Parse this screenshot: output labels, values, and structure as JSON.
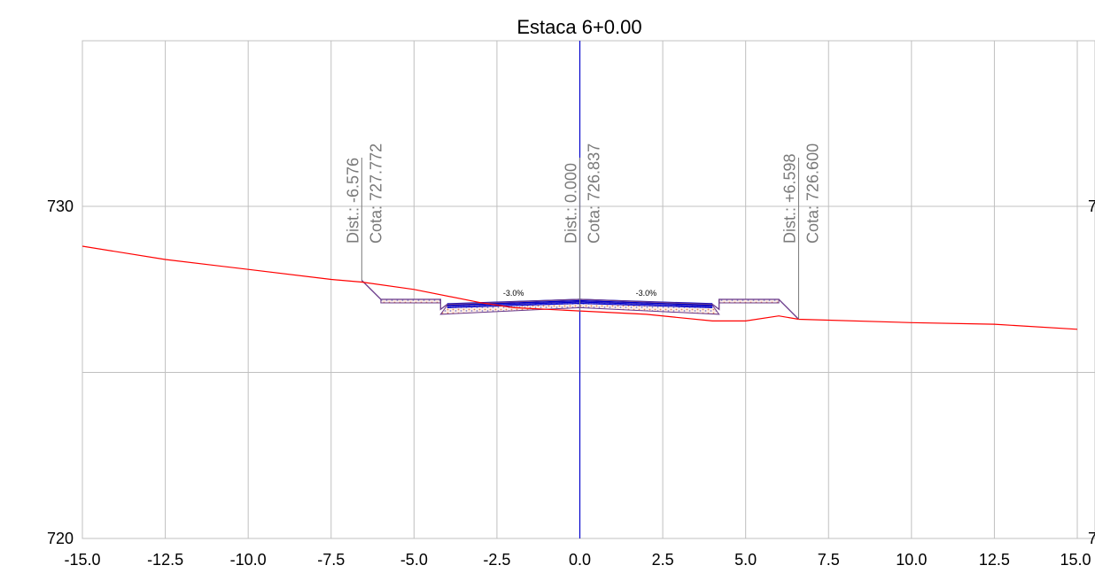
{
  "chart_data": {
    "type": "line",
    "title": "Estaca 6+0.00",
    "xlabel": "",
    "ylabel": "",
    "xlim": [
      -15.0,
      15.0
    ],
    "ylim": [
      720,
      732.5
    ],
    "grid": true,
    "x_ticks": [
      "-15.0",
      "-12.5",
      "-10.0",
      "-7.5",
      "-5.0",
      "-2.5",
      "0.0",
      "2.5",
      "5.0",
      "7.5",
      "10.0",
      "12.5",
      "15.0"
    ],
    "x_tick_values": [
      -15.0,
      -12.5,
      -10.0,
      -7.5,
      -5.0,
      -2.5,
      0.0,
      2.5,
      5.0,
      7.5,
      10.0,
      12.5,
      15.0
    ],
    "y_ticks_left": [
      "720",
      "730"
    ],
    "y_ticks_right": [
      "7",
      "7"
    ],
    "y_tick_values": [
      720,
      730
    ],
    "grid_y_values": [
      720,
      725,
      730
    ],
    "centerline_x": 0.0,
    "terrain": {
      "x": [
        -15.0,
        -12.5,
        -10.0,
        -7.5,
        -6.576,
        -5.0,
        -3.0,
        -2.0,
        0.0,
        2.0,
        4.0,
        5.0,
        6.0,
        6.598,
        10.0,
        12.5,
        15.0
      ],
      "y": [
        728.8,
        728.4,
        728.1,
        727.8,
        727.72,
        727.5,
        727.1,
        726.95,
        726.85,
        726.75,
        726.55,
        726.55,
        726.7,
        726.6,
        726.5,
        726.45,
        726.3
      ]
    },
    "section": {
      "x": [
        -6.576,
        -6.0,
        -4.2,
        -4.2,
        -4.0,
        0.0,
        4.0,
        4.2,
        4.2,
        6.0,
        6.598
      ],
      "y": [
        727.772,
        727.2,
        727.2,
        726.9,
        727.05,
        727.2,
        727.05,
        726.9,
        727.2,
        727.2,
        726.6
      ]
    },
    "pavement_top": {
      "x": [
        -4.0,
        0.0,
        4.0
      ],
      "y": [
        727.07,
        727.2,
        727.07
      ]
    },
    "pavement_bottom": {
      "x": [
        -4.2,
        0.0,
        4.2
      ],
      "y": [
        726.75,
        726.95,
        726.75
      ]
    },
    "slope_labels": [
      {
        "text": "-3.0%",
        "x": -2.0,
        "y": 727.25
      },
      {
        "text": "-3.0%",
        "x": 2.0,
        "y": 727.25
      }
    ],
    "annotations": [
      {
        "x": -6.576,
        "y": 727.772,
        "dist": "Dist.: -6.576",
        "cota": "Cota: 727.772"
      },
      {
        "x": 0.0,
        "y": 726.837,
        "dist": "Dist.: 0.000",
        "cota": "Cota: 726.837"
      },
      {
        "x": 6.598,
        "y": 726.6,
        "dist": "Dist.: +6.598",
        "cota": "Cota: 726.600"
      }
    ],
    "colors": {
      "terrain": "#ff0000",
      "section": "#6a3a8a",
      "pavement": "#0000cc",
      "centerline": "#0000cc",
      "grid": "#c0c0c0",
      "annotation": "#7a7a7a"
    }
  }
}
